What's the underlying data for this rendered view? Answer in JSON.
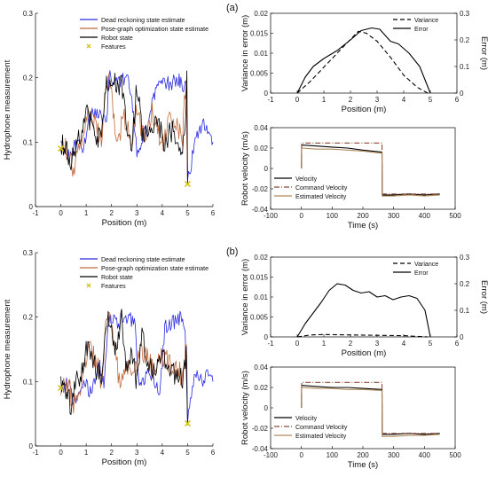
{
  "colors": {
    "dead_reckoning": "#2a2ae0",
    "pose_graph": "#c26a3c",
    "robot_state": "#000000",
    "features": "#d6c51a",
    "command_velocity": "#8b4a3a",
    "estimated_velocity": "#b08a5a",
    "axis": "#000000"
  },
  "chart_data": [
    {
      "id": "a_left",
      "type": "line",
      "title": "",
      "xlabel": "Position (m)",
      "ylabel": "Hydrophone measurement",
      "xlim": [
        -1,
        6
      ],
      "ylim": [
        0,
        0.3
      ],
      "xticks": [
        "-1",
        "0",
        "1",
        "2",
        "3",
        "4",
        "5",
        "6"
      ],
      "yticks": [
        "0",
        "0.1",
        "0.2",
        "0.3"
      ],
      "legend": {
        "placement": "top-center",
        "entries": [
          "Dead reckoning state estimate",
          "Pose-graph optimization state estimate",
          "Robot state",
          "Features"
        ]
      },
      "series": [
        {
          "name": "Dead reckoning state estimate",
          "x": [
            0.0,
            0.3,
            0.6,
            0.9,
            1.2,
            1.5,
            1.8,
            1.9,
            2.3,
            2.6,
            2.8,
            3.0,
            3.4,
            3.6,
            3.8,
            4.0,
            4.3,
            4.6,
            4.8,
            4.95,
            5.0,
            5.3,
            5.6,
            5.9,
            6.0
          ],
          "y": [
            0.09,
            0.08,
            0.1,
            0.09,
            0.145,
            0.145,
            0.13,
            0.2,
            0.195,
            0.2,
            0.17,
            0.08,
            0.12,
            0.16,
            0.19,
            0.195,
            0.19,
            0.2,
            0.185,
            0.19,
            0.04,
            0.1,
            0.13,
            0.12,
            0.1
          ]
        },
        {
          "name": "Pose-graph optimization state estimate",
          "x": [
            0.0,
            0.3,
            0.5,
            0.8,
            1.1,
            1.4,
            1.6,
            1.8,
            2.0,
            2.2,
            2.5,
            2.8,
            3.0,
            3.3,
            3.6,
            4.0,
            4.4,
            4.8,
            4.95,
            5.0
          ],
          "y": [
            0.095,
            0.085,
            0.06,
            0.1,
            0.15,
            0.13,
            0.1,
            0.2,
            0.18,
            0.1,
            0.14,
            0.1,
            0.15,
            0.1,
            0.145,
            0.1,
            0.14,
            0.11,
            0.2,
            0.035
          ]
        },
        {
          "name": "Robot state",
          "x": [
            0.0,
            0.2,
            0.4,
            0.6,
            0.8,
            1.0,
            1.2,
            1.4,
            1.6,
            1.8,
            1.9,
            2.0,
            2.2,
            2.4,
            2.6,
            2.8,
            3.0,
            3.2,
            3.5,
            3.8,
            4.1,
            4.4,
            4.7,
            4.9,
            4.97,
            5.0
          ],
          "y": [
            0.1,
            0.09,
            0.07,
            0.1,
            0.11,
            0.15,
            0.13,
            0.1,
            0.12,
            0.195,
            0.19,
            0.2,
            0.19,
            0.19,
            0.13,
            0.1,
            0.19,
            0.12,
            0.11,
            0.13,
            0.1,
            0.12,
            0.09,
            0.11,
            0.2,
            0.035
          ]
        },
        {
          "name": "Features",
          "type": "scatter",
          "x": [
            0.0,
            5.0
          ],
          "y": [
            0.09,
            0.035
          ]
        }
      ]
    },
    {
      "id": "a_error",
      "type": "line",
      "title": "",
      "panel_label": "(a)",
      "xlabel": "Position (m)",
      "ylabel": "Variance in error (m)",
      "ylabel_right": "Error (m)",
      "xlim": [
        -1,
        6
      ],
      "ylim": [
        0,
        0.02
      ],
      "ylim_right": [
        0,
        0.3
      ],
      "xticks": [
        "-1",
        "0",
        "1",
        "2",
        "3",
        "4",
        "5",
        "6"
      ],
      "yticks": [
        "0",
        "0.005",
        "0.01",
        "0.015",
        "0.02"
      ],
      "yticks_right": [
        "0",
        "0.1",
        "0.2",
        "0.3"
      ],
      "legend": {
        "placement": "top-right",
        "entries": [
          "Variance",
          "Error"
        ]
      },
      "series": [
        {
          "name": "Variance",
          "style": "dashed",
          "axis": "left",
          "x": [
            0.0,
            0.5,
            1.0,
            1.5,
            2.0,
            2.3,
            2.6,
            3.0,
            3.5,
            4.0,
            4.5,
            4.9
          ],
          "y": [
            0.0,
            0.003,
            0.0065,
            0.01,
            0.0135,
            0.0155,
            0.015,
            0.013,
            0.009,
            0.0045,
            0.0015,
            0.0
          ]
        },
        {
          "name": "Error",
          "style": "solid",
          "axis": "right",
          "x": [
            0.0,
            0.3,
            0.6,
            1.0,
            1.5,
            2.0,
            2.4,
            2.8,
            3.1,
            3.5,
            3.8,
            4.2,
            4.6,
            5.0
          ],
          "y": [
            0.0,
            0.06,
            0.1,
            0.13,
            0.16,
            0.2,
            0.235,
            0.245,
            0.24,
            0.195,
            0.185,
            0.15,
            0.1,
            0.0
          ]
        }
      ]
    },
    {
      "id": "a_velocity",
      "type": "line",
      "title": "",
      "xlabel": "Time (s)",
      "ylabel": "Robot velocity (m/s)",
      "xlim": [
        -100,
        500
      ],
      "ylim": [
        -0.04,
        0.04
      ],
      "xticks": [
        "-100",
        "0",
        "100",
        "200",
        "300",
        "400",
        "500"
      ],
      "yticks": [
        "-0.04",
        "-0.02",
        "0",
        "0.02",
        "0.04"
      ],
      "legend": {
        "placement": "bottom-left",
        "entries": [
          "Velocity",
          "Command Velocity",
          "Estimated Velocity"
        ]
      },
      "series": [
        {
          "name": "Velocity",
          "x": [
            0,
            1,
            50,
            100,
            150,
            200,
            262,
            263,
            300,
            350,
            400,
            450
          ],
          "y": [
            0,
            0.023,
            0.022,
            0.021,
            0.02,
            0.018,
            0.016,
            -0.026,
            -0.026,
            -0.025,
            -0.026,
            -0.025
          ]
        },
        {
          "name": "Command Velocity",
          "style": "dashdot",
          "x": [
            0,
            1,
            262,
            263,
            450
          ],
          "y": [
            0,
            0.025,
            0.025,
            -0.025,
            -0.025
          ]
        },
        {
          "name": "Estimated Velocity",
          "x": [
            0,
            1,
            50,
            100,
            150,
            200,
            262,
            263,
            300,
            350,
            400,
            450
          ],
          "y": [
            0,
            0.02,
            0.019,
            0.019,
            0.018,
            0.017,
            0.015,
            -0.027,
            -0.027,
            -0.026,
            -0.027,
            -0.026
          ]
        }
      ]
    },
    {
      "id": "b_left",
      "type": "line",
      "title": "",
      "xlabel": "Position (m)",
      "ylabel": "Hydrophone measurement",
      "xlim": [
        -1,
        6
      ],
      "ylim": [
        0,
        0.3
      ],
      "xticks": [
        "-1",
        "0",
        "1",
        "2",
        "3",
        "4",
        "5",
        "6"
      ],
      "yticks": [
        "0",
        "0.1",
        "0.2",
        "0.3"
      ],
      "legend": {
        "placement": "top-center",
        "entries": [
          "Dead reckoning state estimate",
          "Pose-graph optimization state estimate",
          "Robot state",
          "Features"
        ]
      },
      "series": [
        {
          "name": "Dead reckoning state estimate",
          "x": [
            0.0,
            0.3,
            0.6,
            0.9,
            1.2,
            1.5,
            1.7,
            1.9,
            2.2,
            2.6,
            2.9,
            3.1,
            3.5,
            3.9,
            4.1,
            4.4,
            4.7,
            4.9,
            5.0,
            5.3,
            5.6,
            5.9,
            6.0
          ],
          "y": [
            0.09,
            0.095,
            0.06,
            0.1,
            0.08,
            0.13,
            0.1,
            0.2,
            0.19,
            0.2,
            0.195,
            0.085,
            0.12,
            0.08,
            0.185,
            0.19,
            0.2,
            0.19,
            0.04,
            0.11,
            0.1,
            0.12,
            0.1
          ]
        },
        {
          "name": "Pose-graph optimization state estimate",
          "x": [
            0.0,
            0.3,
            0.5,
            0.8,
            1.1,
            1.4,
            1.6,
            1.8,
            2.0,
            2.3,
            2.6,
            2.9,
            3.2,
            3.6,
            4.0,
            4.4,
            4.8,
            4.95,
            5.0
          ],
          "y": [
            0.09,
            0.095,
            0.06,
            0.1,
            0.15,
            0.13,
            0.1,
            0.2,
            0.185,
            0.1,
            0.13,
            0.11,
            0.15,
            0.12,
            0.14,
            0.12,
            0.11,
            0.16,
            0.035
          ]
        },
        {
          "name": "Robot state",
          "x": [
            0.0,
            0.2,
            0.4,
            0.6,
            0.8,
            1.0,
            1.2,
            1.4,
            1.6,
            1.8,
            2.0,
            2.2,
            2.4,
            2.6,
            2.8,
            3.0,
            3.2,
            3.4,
            3.7,
            4.0,
            4.3,
            4.6,
            4.8,
            4.95,
            5.0
          ],
          "y": [
            0.1,
            0.09,
            0.06,
            0.1,
            0.11,
            0.15,
            0.14,
            0.12,
            0.1,
            0.2,
            0.19,
            0.14,
            0.2,
            0.12,
            0.14,
            0.1,
            0.18,
            0.13,
            0.11,
            0.14,
            0.12,
            0.11,
            0.1,
            0.15,
            0.035
          ]
        },
        {
          "name": "Features",
          "type": "scatter",
          "x": [
            0.0,
            5.0
          ],
          "y": [
            0.09,
            0.035
          ]
        }
      ]
    },
    {
      "id": "b_error",
      "type": "line",
      "title": "",
      "panel_label": "(b)",
      "xlabel": "Position (m)",
      "ylabel": "Variance in error (m)",
      "ylabel_right": "Error (m)",
      "xlim": [
        -1,
        6
      ],
      "ylim": [
        0,
        0.02
      ],
      "ylim_right": [
        0,
        0.3
      ],
      "xticks": [
        "-1",
        "0",
        "1",
        "2",
        "3",
        "4",
        "5",
        "6"
      ],
      "yticks": [
        "0",
        "0.005",
        "0.01",
        "0.015",
        "0.02"
      ],
      "yticks_right": [
        "0",
        "0.1",
        "0.2",
        "0.3"
      ],
      "legend": {
        "placement": "top-right",
        "entries": [
          "Variance",
          "Error"
        ]
      },
      "series": [
        {
          "name": "Variance",
          "style": "dashed",
          "axis": "left",
          "x": [
            0.0,
            0.5,
            1.0,
            2.0,
            3.0,
            4.0,
            4.9
          ],
          "y": [
            0.0,
            0.0005,
            0.0006,
            0.0005,
            0.0004,
            0.0003,
            0.0
          ]
        },
        {
          "name": "Error",
          "style": "solid",
          "axis": "right",
          "x": [
            0.0,
            0.3,
            0.6,
            0.9,
            1.2,
            1.5,
            1.8,
            2.1,
            2.4,
            2.7,
            3.0,
            3.3,
            3.6,
            3.9,
            4.2,
            4.5,
            4.8,
            5.0
          ],
          "y": [
            0.0,
            0.05,
            0.09,
            0.13,
            0.175,
            0.2,
            0.195,
            0.175,
            0.165,
            0.17,
            0.15,
            0.155,
            0.14,
            0.15,
            0.155,
            0.145,
            0.1,
            0.0
          ]
        }
      ]
    },
    {
      "id": "b_velocity",
      "type": "line",
      "title": "",
      "xlabel": "Time (s)",
      "ylabel": "Robot velocity (m/s)",
      "xlim": [
        -100,
        500
      ],
      "ylim": [
        -0.04,
        0.04
      ],
      "xticks": [
        "-100",
        "0",
        "100",
        "200",
        "300",
        "400",
        "500"
      ],
      "yticks": [
        "-0.04",
        "-0.02",
        "0",
        "0.02",
        "0.04"
      ],
      "legend": {
        "placement": "bottom-left",
        "entries": [
          "Velocity",
          "Command Velocity",
          "Estimated Velocity"
        ]
      },
      "series": [
        {
          "name": "Velocity",
          "x": [
            0,
            1,
            50,
            100,
            150,
            200,
            262,
            263,
            300,
            350,
            400,
            450
          ],
          "y": [
            0,
            0.022,
            0.021,
            0.02,
            0.02,
            0.019,
            0.018,
            -0.026,
            -0.026,
            -0.025,
            -0.026,
            -0.025
          ]
        },
        {
          "name": "Command Velocity",
          "style": "dashdot",
          "x": [
            0,
            1,
            262,
            263,
            450
          ],
          "y": [
            0,
            0.025,
            0.025,
            -0.025,
            -0.025
          ]
        },
        {
          "name": "Estimated Velocity",
          "x": [
            0,
            1,
            50,
            100,
            150,
            200,
            262,
            263,
            300,
            350,
            400,
            450
          ],
          "y": [
            0,
            0.02,
            0.019,
            0.019,
            0.018,
            0.018,
            0.017,
            -0.028,
            -0.028,
            -0.027,
            -0.027,
            -0.026
          ]
        }
      ]
    }
  ]
}
